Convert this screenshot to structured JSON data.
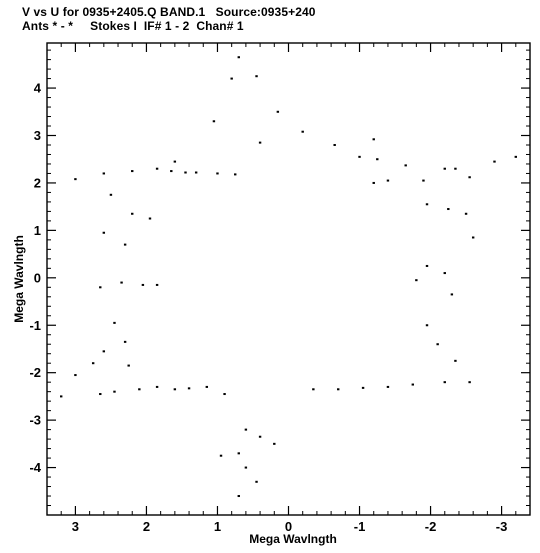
{
  "header": {
    "line1": "V vs U for 0935+2405.Q BAND.1   Source:0935+240",
    "line2": "Ants * - *     Stokes I  IF# 1 - 2  Chan# 1"
  },
  "colors": {
    "background": "#ffffff",
    "ink": "#000000"
  },
  "chart_data": {
    "type": "scatter",
    "xlabel": "Mega Wavlngth",
    "ylabel": "Mega Wavlngth",
    "xlim": [
      3.4,
      -3.4
    ],
    "ylim": [
      -5.0,
      4.95
    ],
    "xticks": [
      3,
      2,
      1,
      0,
      -1,
      -2,
      -3
    ],
    "yticks": [
      -4,
      -3,
      -2,
      -1,
      0,
      1,
      2,
      3,
      4
    ],
    "series": [
      {
        "points": [
          [
            0.7,
            4.65
          ],
          [
            0.45,
            4.25
          ],
          [
            0.8,
            4.2
          ],
          [
            0.15,
            3.5
          ],
          [
            1.05,
            3.3
          ],
          [
            -0.2,
            3.08
          ],
          [
            -1.2,
            2.92
          ],
          [
            0.4,
            2.85
          ],
          [
            -0.65,
            2.8
          ],
          [
            -1.0,
            2.55
          ],
          [
            -1.25,
            2.5
          ],
          [
            -1.65,
            2.37
          ],
          [
            -2.2,
            2.3
          ],
          [
            -2.9,
            2.45
          ],
          [
            -3.2,
            2.55
          ],
          [
            -2.55,
            2.12
          ],
          [
            -1.9,
            2.05
          ],
          [
            -2.35,
            2.3
          ],
          [
            1.6,
            2.45
          ],
          [
            2.2,
            2.25
          ],
          [
            2.6,
            2.2
          ],
          [
            3.0,
            2.08
          ],
          [
            1.85,
            2.3
          ],
          [
            1.65,
            2.25
          ],
          [
            1.45,
            2.22
          ],
          [
            1.3,
            2.22
          ],
          [
            1.0,
            2.2
          ],
          [
            0.75,
            2.18
          ],
          [
            -1.2,
            2.0
          ],
          [
            -1.4,
            2.05
          ],
          [
            2.5,
            1.75
          ],
          [
            2.2,
            1.35
          ],
          [
            1.95,
            1.25
          ],
          [
            2.6,
            0.95
          ],
          [
            2.3,
            0.7
          ],
          [
            2.65,
            -0.2
          ],
          [
            2.35,
            -0.1
          ],
          [
            2.05,
            -0.15
          ],
          [
            1.85,
            -0.15
          ],
          [
            2.45,
            -0.95
          ],
          [
            2.3,
            -1.35
          ],
          [
            2.6,
            -1.55
          ],
          [
            2.25,
            -1.85
          ],
          [
            2.75,
            -1.8
          ],
          [
            3.2,
            -2.5
          ],
          [
            3.0,
            -2.05
          ],
          [
            2.65,
            -2.45
          ],
          [
            2.45,
            -2.4
          ],
          [
            2.1,
            -2.35
          ],
          [
            1.85,
            -2.3
          ],
          [
            1.6,
            -2.35
          ],
          [
            1.4,
            -2.33
          ],
          [
            1.15,
            -2.3
          ],
          [
            0.9,
            -2.45
          ],
          [
            0.6,
            -3.2
          ],
          [
            0.4,
            -3.35
          ],
          [
            0.2,
            -3.5
          ],
          [
            0.7,
            -3.7
          ],
          [
            0.6,
            -4.0
          ],
          [
            0.45,
            -4.3
          ],
          [
            0.7,
            -4.6
          ],
          [
            0.95,
            -3.75
          ],
          [
            -0.35,
            -2.35
          ],
          [
            -0.7,
            -2.35
          ],
          [
            -1.05,
            -2.32
          ],
          [
            -1.4,
            -2.3
          ],
          [
            -1.75,
            -2.25
          ],
          [
            -2.2,
            -2.2
          ],
          [
            -2.55,
            -2.2
          ],
          [
            -2.35,
            -1.75
          ],
          [
            -2.1,
            -1.4
          ],
          [
            -1.95,
            -1.0
          ],
          [
            -2.3,
            -0.35
          ],
          [
            -2.2,
            0.1
          ],
          [
            -1.95,
            0.25
          ],
          [
            -1.8,
            -0.05
          ],
          [
            -2.6,
            0.85
          ],
          [
            -2.5,
            1.35
          ],
          [
            -2.25,
            1.45
          ],
          [
            -1.95,
            1.55
          ]
        ]
      }
    ]
  }
}
